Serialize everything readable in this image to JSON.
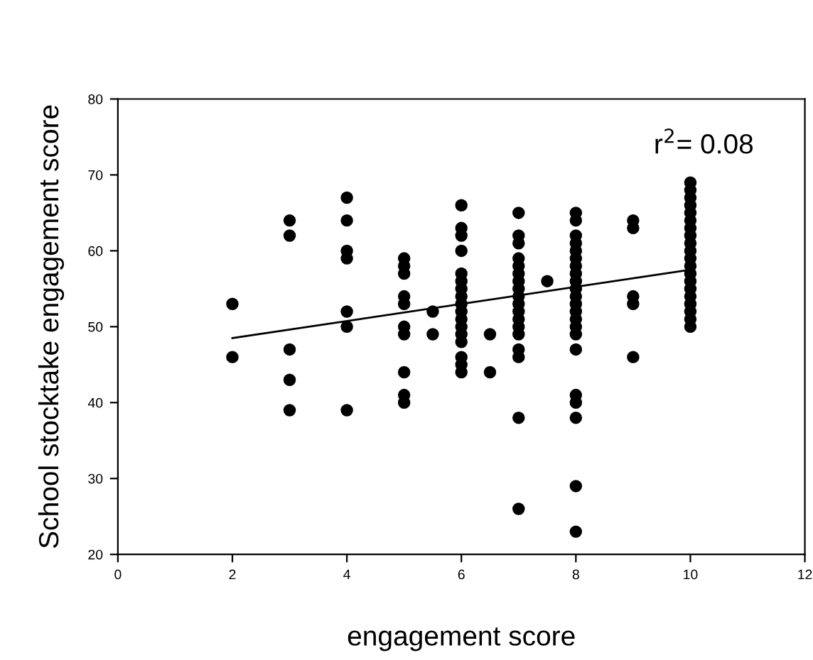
{
  "chart_data": {
    "type": "scatter",
    "xlabel": "engagement score",
    "ylabel": "School stocktake engagement score",
    "annotations": [
      "r$^{2}$= 0.08"
    ],
    "series": [
      {
        "color": "#000000",
        "x": [
          2,
          2,
          3,
          3,
          3,
          3,
          3,
          4,
          4,
          4,
          4,
          4,
          4,
          4,
          5,
          5,
          5,
          5,
          5,
          5,
          5,
          5,
          5,
          5,
          5.5,
          5.5,
          6,
          6,
          6,
          6,
          6,
          6,
          6,
          6,
          6,
          6,
          6,
          6,
          6,
          6,
          6,
          6,
          6,
          6.5,
          6.5,
          7,
          7,
          7,
          7,
          7,
          7,
          7,
          7,
          7,
          7,
          7,
          7,
          7,
          7,
          7,
          7,
          7,
          7,
          7.5,
          8,
          8,
          8,
          8,
          8,
          8,
          8,
          8,
          8,
          8,
          8,
          8,
          8,
          8,
          8,
          8,
          8,
          8,
          8,
          8,
          8,
          8,
          9,
          9,
          9,
          9,
          9,
          10,
          10,
          10,
          10,
          10,
          10,
          10,
          10,
          10,
          10,
          10,
          10,
          10,
          10,
          10,
          10,
          10,
          10,
          10,
          10
        ],
        "values": [
          53,
          46,
          64,
          62,
          47,
          43,
          39,
          67,
          64,
          60,
          59,
          52,
          50,
          39,
          59,
          58,
          57,
          54,
          53,
          50,
          49,
          44,
          41,
          40,
          52,
          49,
          66,
          63,
          62,
          60,
          57,
          56,
          55,
          54,
          53,
          52,
          51,
          50,
          49,
          48,
          46,
          45,
          44,
          49,
          44,
          65,
          62,
          61,
          59,
          58,
          57,
          56,
          55,
          54,
          53,
          52,
          51,
          50,
          49,
          47,
          46,
          38,
          26,
          56,
          65,
          64,
          62,
          61,
          60,
          59,
          58,
          57,
          56,
          55,
          54,
          53,
          52,
          51,
          50,
          49,
          47,
          41,
          40,
          38,
          29,
          23,
          64,
          63,
          54,
          53,
          46,
          69,
          68,
          67,
          66,
          65,
          64,
          63,
          62,
          61,
          60,
          59,
          58,
          57,
          56,
          55,
          54,
          53,
          52,
          51,
          50
        ]
      },
      {
        "type": "line",
        "color": "#000000",
        "marker": "none",
        "x": [
          2,
          10
        ],
        "values": [
          48.5,
          57.5
        ]
      }
    ],
    "xlim": [
      0,
      12
    ],
    "xticks": [
      0,
      2,
      4,
      6,
      8,
      10,
      12
    ],
    "ylim": [
      20,
      80
    ],
    "yticks": [
      20,
      30,
      40,
      50,
      60,
      70,
      80
    ],
    "grid": false,
    "legend": false,
    "marker": "circle"
  }
}
